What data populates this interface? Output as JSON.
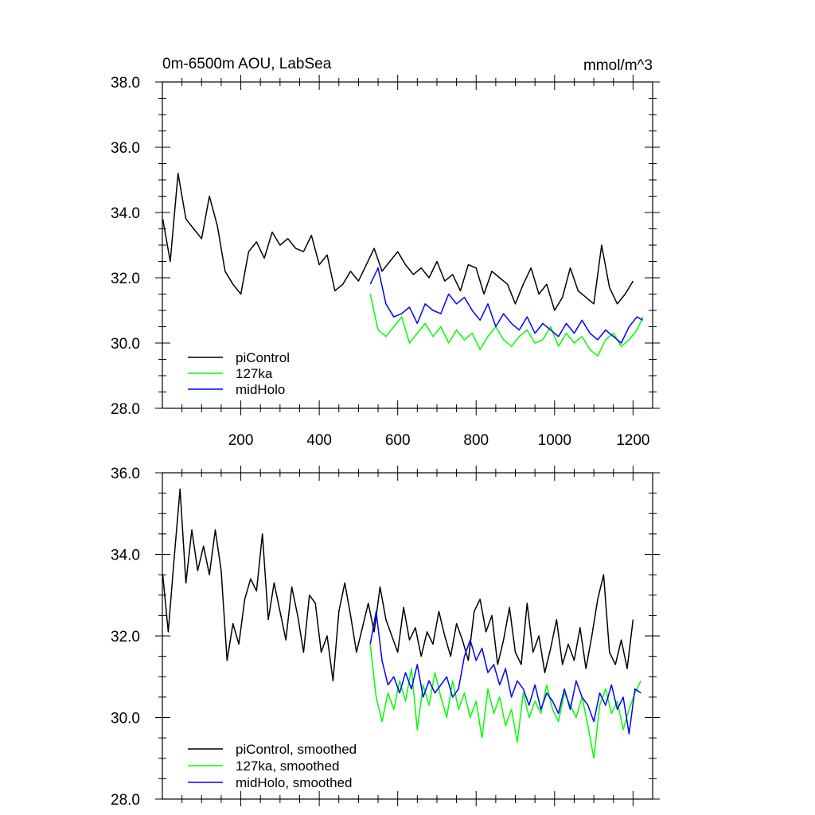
{
  "chart_data": [
    {
      "type": "line",
      "title": "0m-6500m AOU, LabSea",
      "units": "mmol/m^3",
      "xlim": [
        0,
        1250
      ],
      "ylim": [
        28,
        38
      ],
      "x_ticks": [
        200,
        400,
        600,
        800,
        1000,
        1200
      ],
      "x_tick_labels": [
        "200",
        "400",
        "600",
        "800",
        "1000",
        "1200"
      ],
      "y_ticks": [
        28,
        30,
        32,
        34,
        36,
        38
      ],
      "y_tick_labels": [
        "28.0",
        "30.0",
        "32.0",
        "34.0",
        "36.0",
        "38.0"
      ],
      "legend_position": "bottom-left",
      "grid": false,
      "series": [
        {
          "name": "piControl",
          "color": "#000000",
          "x": [
            1,
            20,
            40,
            60,
            80,
            100,
            120,
            140,
            160,
            180,
            200,
            220,
            240,
            260,
            280,
            300,
            320,
            340,
            360,
            380,
            400,
            420,
            440,
            460,
            480,
            500,
            520,
            540,
            560,
            580,
            600,
            620,
            640,
            660,
            680,
            700,
            720,
            740,
            760,
            780,
            800,
            820,
            840,
            860,
            880,
            900,
            920,
            940,
            960,
            980,
            1000,
            1020,
            1040,
            1060,
            1080,
            1100,
            1120,
            1140,
            1160,
            1180,
            1200
          ],
          "values": [
            33.8,
            32.5,
            35.2,
            33.8,
            33.5,
            33.2,
            34.5,
            33.6,
            32.2,
            31.8,
            31.5,
            32.8,
            33.1,
            32.6,
            33.4,
            33.0,
            33.2,
            32.9,
            32.8,
            33.3,
            32.4,
            32.7,
            31.6,
            31.8,
            32.2,
            31.9,
            32.4,
            32.9,
            32.2,
            32.5,
            32.8,
            32.4,
            32.1,
            32.3,
            32.0,
            32.5,
            31.9,
            32.1,
            31.6,
            32.4,
            32.3,
            31.5,
            32.2,
            32.0,
            31.8,
            31.2,
            31.8,
            32.3,
            31.5,
            31.8,
            31.0,
            31.4,
            32.3,
            31.6,
            31.4,
            31.2,
            33.0,
            31.7,
            31.2,
            31.5,
            31.9
          ]
        },
        {
          "name": "127ka",
          "color": "#00ff00",
          "x": [
            530,
            550,
            570,
            590,
            610,
            630,
            650,
            670,
            690,
            710,
            730,
            750,
            770,
            790,
            810,
            830,
            850,
            870,
            890,
            910,
            930,
            950,
            970,
            990,
            1010,
            1030,
            1050,
            1070,
            1090,
            1110,
            1130,
            1150,
            1170,
            1190,
            1210,
            1225
          ],
          "values": [
            31.5,
            30.4,
            30.2,
            30.5,
            30.8,
            30.0,
            30.3,
            30.6,
            30.2,
            30.5,
            30.0,
            30.4,
            30.1,
            30.3,
            29.8,
            30.2,
            30.5,
            30.1,
            29.9,
            30.2,
            30.4,
            30.0,
            30.1,
            30.5,
            29.9,
            30.3,
            30.0,
            30.2,
            29.8,
            29.6,
            30.1,
            30.3,
            29.9,
            30.1,
            30.4,
            30.8
          ]
        },
        {
          "name": "midHolo",
          "color": "#0000ff",
          "x": [
            530,
            550,
            570,
            590,
            610,
            630,
            650,
            670,
            690,
            710,
            730,
            750,
            770,
            790,
            810,
            830,
            850,
            870,
            890,
            910,
            930,
            950,
            970,
            990,
            1010,
            1030,
            1050,
            1070,
            1090,
            1110,
            1130,
            1150,
            1170,
            1190,
            1210,
            1225
          ],
          "values": [
            31.8,
            32.3,
            31.2,
            30.8,
            30.9,
            31.1,
            30.6,
            31.2,
            31.0,
            30.9,
            31.5,
            31.2,
            31.4,
            31.0,
            30.7,
            31.2,
            30.5,
            30.9,
            30.6,
            30.4,
            30.8,
            30.3,
            30.6,
            30.4,
            30.2,
            30.6,
            30.3,
            30.7,
            30.3,
            30.1,
            30.4,
            30.2,
            30.0,
            30.5,
            30.8,
            30.7
          ]
        }
      ]
    },
    {
      "type": "line",
      "xlim": [
        0,
        1250
      ],
      "ylim": [
        28,
        36
      ],
      "x_ticks": [
        200,
        400,
        600,
        800,
        1000,
        1200
      ],
      "x_tick_labels": [],
      "y_ticks": [
        28,
        30,
        32,
        34,
        36
      ],
      "y_tick_labels": [
        "28.0",
        "30.0",
        "32.0",
        "34.0",
        "36.0"
      ],
      "legend_position": "bottom-left",
      "grid": false,
      "series": [
        {
          "name": "piControl, smoothed",
          "color": "#000000",
          "x": [
            1,
            15,
            30,
            45,
            60,
            75,
            90,
            105,
            120,
            135,
            150,
            165,
            180,
            195,
            210,
            225,
            240,
            255,
            270,
            285,
            300,
            315,
            330,
            345,
            360,
            375,
            390,
            405,
            420,
            435,
            450,
            465,
            480,
            495,
            510,
            525,
            540,
            555,
            570,
            585,
            600,
            615,
            630,
            645,
            660,
            675,
            690,
            705,
            720,
            735,
            750,
            765,
            780,
            795,
            810,
            825,
            840,
            855,
            870,
            885,
            900,
            915,
            930,
            945,
            960,
            975,
            990,
            1005,
            1020,
            1035,
            1050,
            1065,
            1080,
            1095,
            1110,
            1125,
            1140,
            1155,
            1170,
            1185,
            1200
          ],
          "values": [
            33.5,
            32.1,
            33.9,
            35.6,
            33.3,
            34.6,
            33.6,
            34.2,
            33.5,
            34.6,
            33.6,
            31.4,
            32.3,
            31.8,
            32.9,
            33.4,
            33.1,
            34.5,
            32.4,
            33.3,
            32.6,
            31.9,
            33.2,
            32.5,
            31.6,
            33.0,
            32.8,
            31.6,
            32.0,
            30.9,
            32.6,
            33.3,
            32.5,
            31.6,
            32.2,
            32.8,
            32.1,
            33.2,
            32.4,
            32.0,
            31.6,
            32.7,
            31.9,
            32.2,
            31.5,
            32.1,
            31.8,
            32.6,
            32.0,
            31.5,
            32.3,
            31.9,
            31.4,
            32.6,
            32.9,
            32.1,
            32.5,
            31.3,
            31.9,
            32.7,
            31.6,
            31.3,
            32.8,
            31.6,
            32.0,
            31.1,
            31.7,
            32.4,
            31.3,
            31.8,
            31.4,
            32.2,
            31.2,
            32.0,
            32.9,
            33.5,
            31.6,
            31.3,
            31.9,
            31.2,
            32.4
          ]
        },
        {
          "name": "127ka, smoothed",
          "color": "#00ff00",
          "x": [
            530,
            545,
            560,
            575,
            590,
            605,
            620,
            635,
            650,
            665,
            680,
            695,
            710,
            725,
            740,
            755,
            770,
            785,
            800,
            815,
            830,
            845,
            860,
            875,
            890,
            905,
            920,
            935,
            950,
            965,
            980,
            995,
            1010,
            1025,
            1040,
            1055,
            1070,
            1085,
            1100,
            1115,
            1130,
            1145,
            1160,
            1175,
            1190,
            1205,
            1220
          ],
          "values": [
            31.8,
            30.5,
            29.9,
            30.6,
            30.2,
            30.9,
            30.4,
            31.2,
            29.7,
            30.8,
            30.3,
            31.1,
            30.5,
            30.0,
            30.9,
            30.2,
            30.6,
            30.0,
            30.4,
            29.5,
            30.7,
            30.1,
            30.5,
            29.8,
            30.2,
            29.4,
            30.6,
            30.0,
            30.4,
            30.1,
            30.8,
            30.2,
            29.9,
            30.6,
            30.3,
            30.0,
            30.5,
            29.8,
            29.0,
            30.3,
            30.7,
            30.1,
            30.4,
            29.7,
            30.2,
            30.6,
            30.9
          ]
        },
        {
          "name": "midHolo, smoothed",
          "color": "#0000ff",
          "x": [
            530,
            545,
            560,
            575,
            590,
            605,
            620,
            635,
            650,
            665,
            680,
            695,
            710,
            725,
            740,
            755,
            770,
            785,
            800,
            815,
            830,
            845,
            860,
            875,
            890,
            905,
            920,
            935,
            950,
            965,
            980,
            995,
            1010,
            1025,
            1040,
            1055,
            1070,
            1085,
            1100,
            1115,
            1130,
            1145,
            1160,
            1175,
            1190,
            1205,
            1220
          ],
          "values": [
            31.8,
            32.6,
            31.4,
            30.8,
            31.0,
            30.6,
            31.1,
            30.7,
            31.3,
            30.5,
            30.9,
            30.6,
            30.8,
            31.0,
            30.5,
            30.7,
            31.5,
            31.9,
            31.4,
            31.7,
            31.1,
            31.3,
            30.8,
            31.2,
            30.5,
            30.9,
            30.7,
            30.3,
            30.8,
            30.2,
            30.6,
            30.4,
            30.1,
            30.7,
            30.2,
            30.9,
            30.5,
            30.3,
            29.9,
            30.6,
            30.3,
            30.8,
            30.2,
            30.5,
            29.6,
            30.7,
            30.6
          ]
        }
      ]
    }
  ]
}
